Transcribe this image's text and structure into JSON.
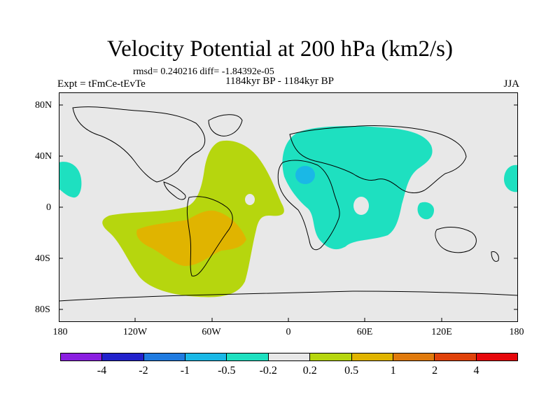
{
  "figure": {
    "title": "Velocity Potential at 200 hPa (km2/s)",
    "stats": "rmsd= 0.240216 diff= -1.84392e-05",
    "period": "1184kyr BP - 1184kyr BP",
    "experiment": "Expt = tFmCe-tEvTe",
    "season": "JJA"
  },
  "axes": {
    "y_labels": [
      "80N",
      "40N",
      "0",
      "40S",
      "80S"
    ],
    "x_labels": [
      "180",
      "120W",
      "60W",
      "0",
      "60E",
      "120E",
      "180"
    ]
  },
  "colorbar": {
    "colors": [
      "#8a1ee0",
      "#2222cc",
      "#1f7be0",
      "#1ab8e6",
      "#1ee0c0",
      "#e8e8e8",
      "#b6d60e",
      "#e0b400",
      "#e07a0c",
      "#e0420a",
      "#e6070b"
    ],
    "labels": [
      "-4",
      "-2",
      "-1",
      "-0.5",
      "-0.2",
      "0.2",
      "0.5",
      "1",
      "2",
      "4"
    ]
  },
  "colors": {
    "background": "#e8e8e8",
    "positive_low": "#b6d60e",
    "positive_mid": "#e0b400",
    "negative_low": "#1ee0c0",
    "negative_mid": "#1ab8e6"
  }
}
